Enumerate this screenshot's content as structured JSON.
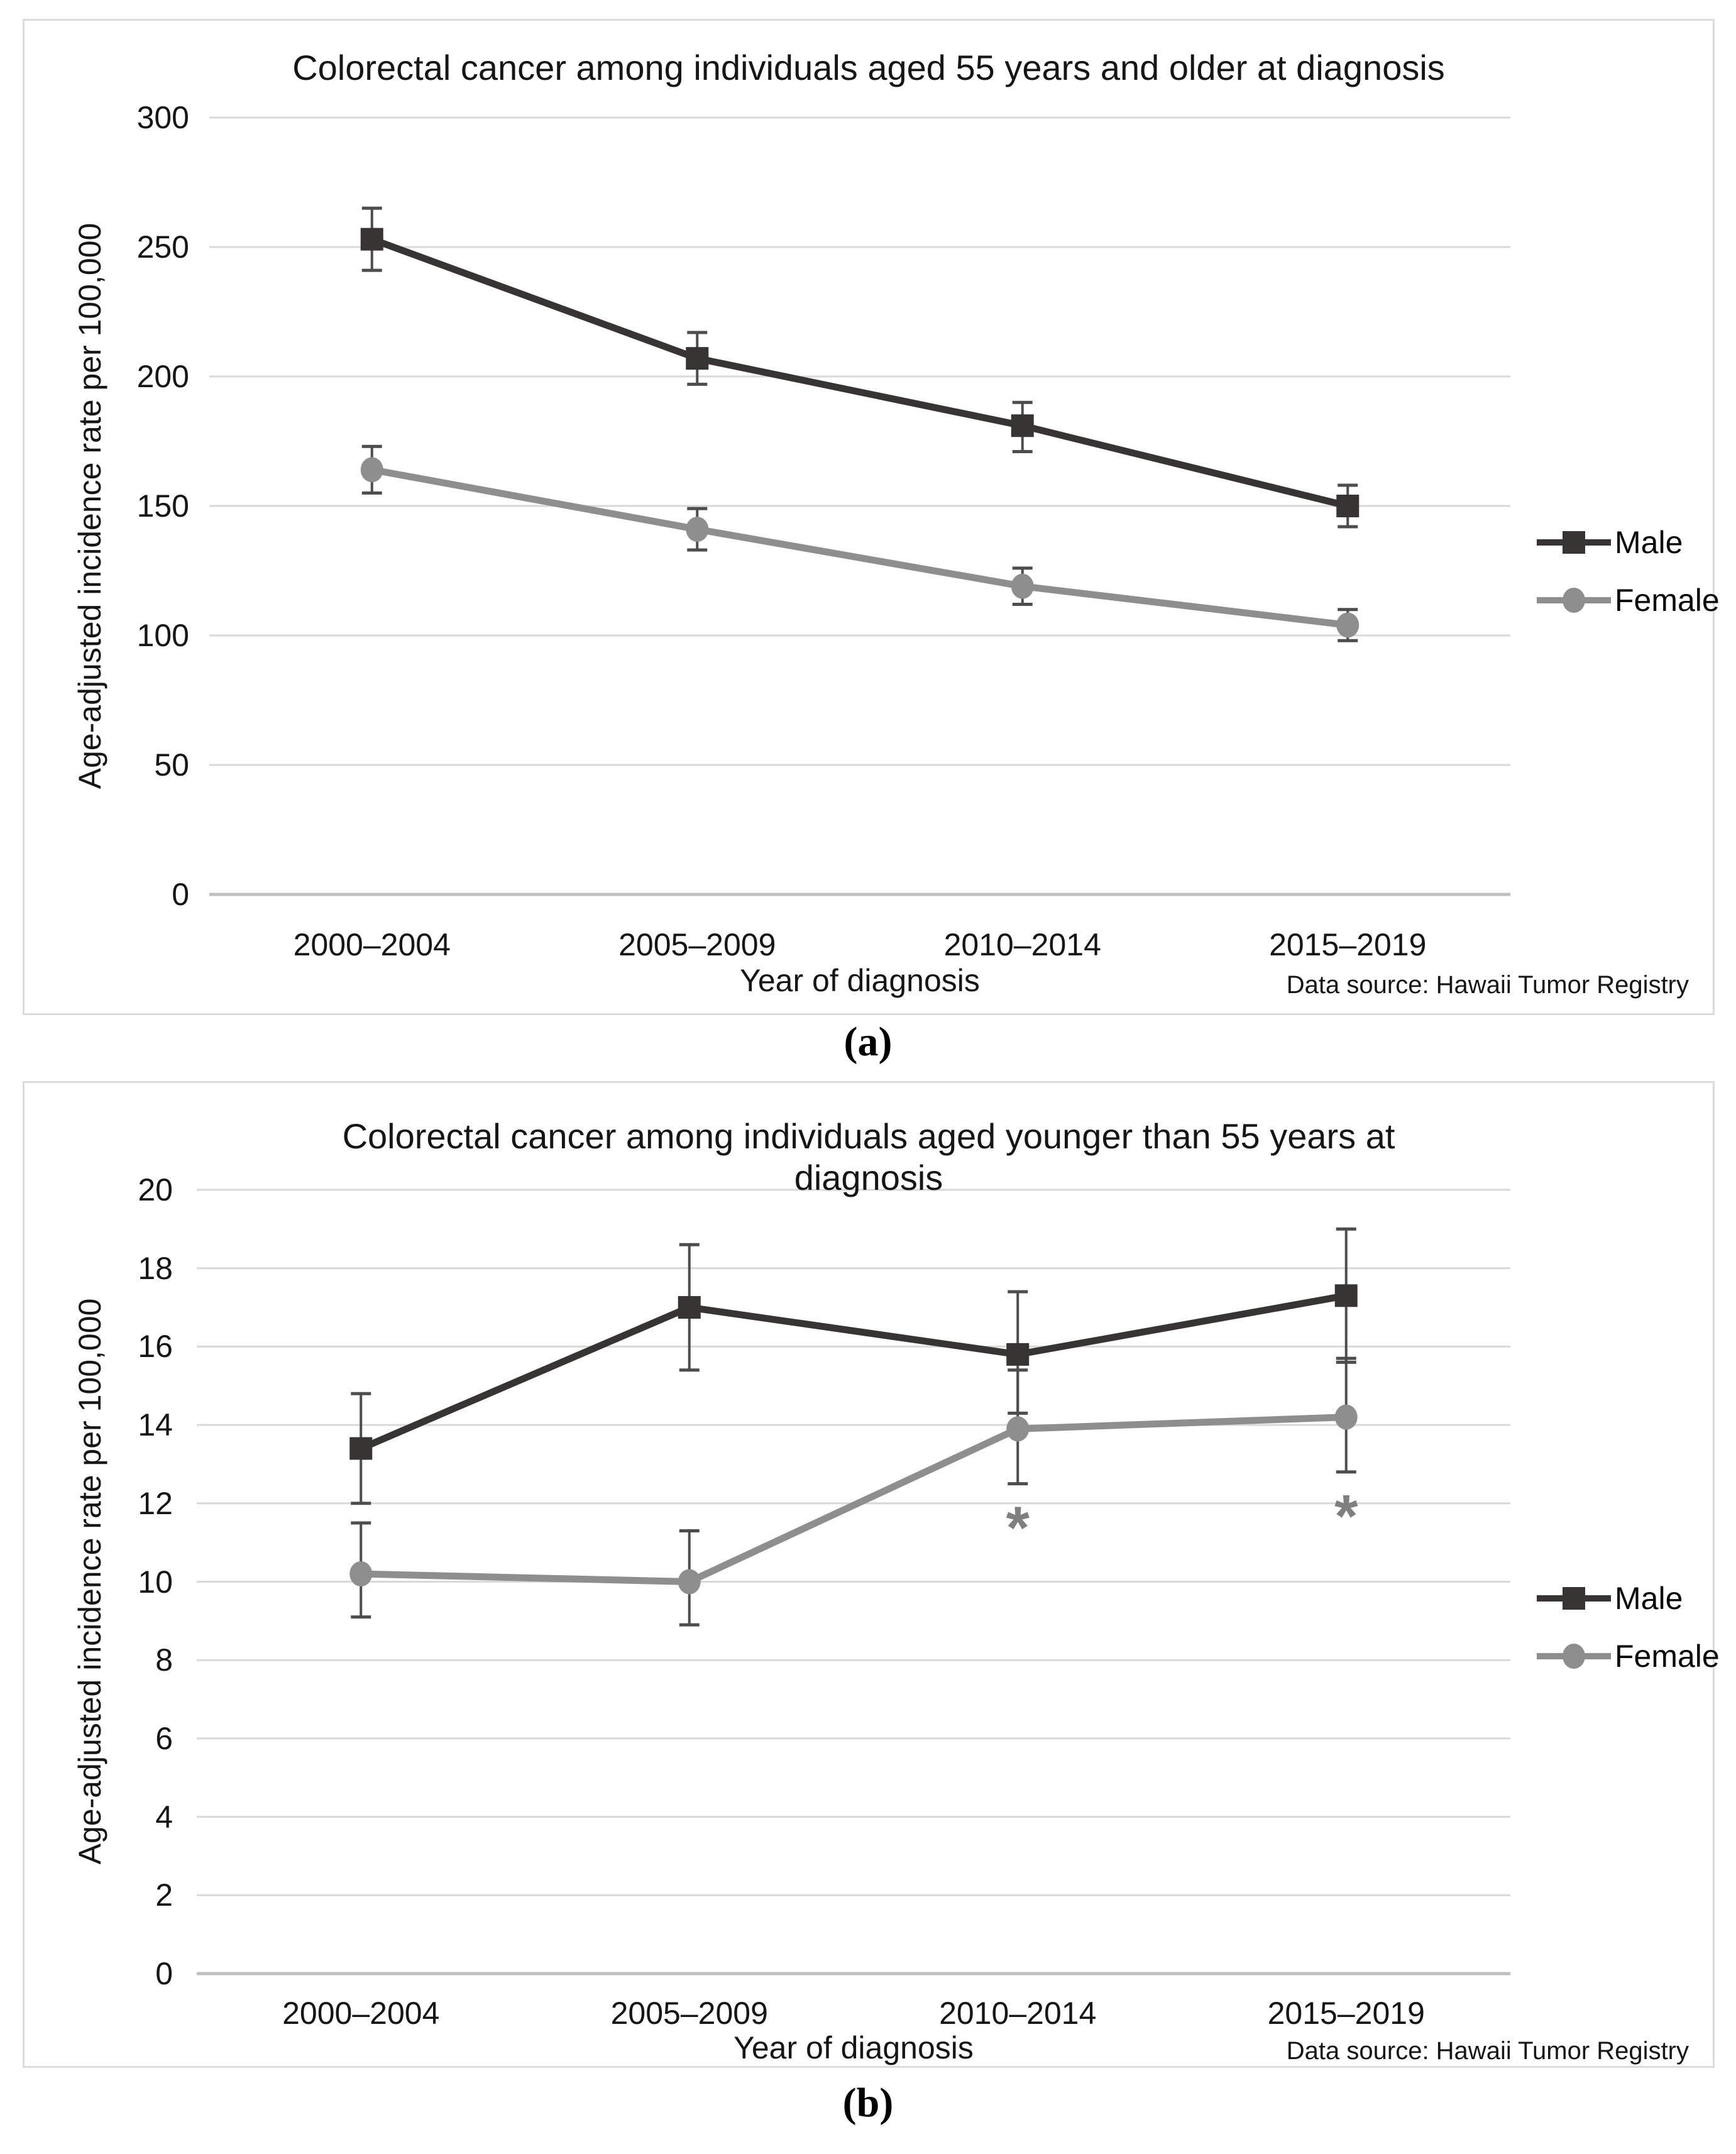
{
  "panel_labels": {
    "a": "(a)",
    "b": "(b)"
  },
  "colors": {
    "male": "#393434",
    "female": "#8e8e8e",
    "error_bar": "#4d4d4d",
    "gridline": "#d9d9d9",
    "axis_line": "#bfbfbf",
    "annotation": "#7f7f7f",
    "panel_border": "#dcdcdc"
  },
  "chart_data": [
    {
      "type": "line",
      "panel": "a",
      "title_lines": [
        "Colorectal cancer among individuals aged 55 years and older at diagnosis"
      ],
      "ylabel": "Age-adjusted incidence rate per 100,000",
      "xlabel": "Year of diagnosis",
      "source_note": "Data source: Hawaii Tumor Registry",
      "categories": [
        "2000–2004",
        "2005–2009",
        "2010–2014",
        "2015–2019"
      ],
      "ylim": [
        0,
        300
      ],
      "yticks": [
        0,
        50,
        100,
        150,
        200,
        250,
        300
      ],
      "grid": true,
      "legend_position": "right",
      "series": [
        {
          "name": "Male",
          "marker": "square",
          "color_key": "male",
          "values": [
            253,
            207,
            181,
            150
          ],
          "error_low": [
            241,
            197,
            171,
            142
          ],
          "error_high": [
            265,
            217,
            190,
            158
          ]
        },
        {
          "name": "Female",
          "marker": "circle",
          "color_key": "female",
          "values": [
            164,
            141,
            119,
            104
          ],
          "error_low": [
            155,
            133,
            112,
            98
          ],
          "error_high": [
            173,
            149,
            126,
            110
          ]
        }
      ],
      "annotations": []
    },
    {
      "type": "line",
      "panel": "b",
      "title_lines": [
        "Colorectal cancer among individuals aged younger than 55 years at",
        "diagnosis"
      ],
      "ylabel": "Age-adjusted incidence rate per 100,000",
      "xlabel": "Year of diagnosis",
      "source_note": "Data source: Hawaii Tumor Registry",
      "categories": [
        "2000–2004",
        "2005–2009",
        "2010–2014",
        "2015–2019"
      ],
      "ylim": [
        0,
        20
      ],
      "yticks": [
        0,
        2,
        4,
        6,
        8,
        10,
        12,
        14,
        16,
        18,
        20
      ],
      "grid": true,
      "legend_position": "right",
      "series": [
        {
          "name": "Male",
          "marker": "square",
          "color_key": "male",
          "values": [
            13.4,
            17.0,
            15.8,
            17.3
          ],
          "error_low": [
            12.0,
            15.4,
            14.3,
            15.6
          ],
          "error_high": [
            14.8,
            18.6,
            17.4,
            19.0
          ]
        },
        {
          "name": "Female",
          "marker": "circle",
          "color_key": "female",
          "values": [
            10.2,
            10.0,
            13.9,
            14.2
          ],
          "error_low": [
            9.1,
            8.9,
            12.5,
            12.8
          ],
          "error_high": [
            11.5,
            11.3,
            15.4,
            15.7
          ]
        }
      ],
      "annotations": [
        {
          "symbol": "*",
          "category_index": 2,
          "y_value": 11.6
        },
        {
          "symbol": "*",
          "category_index": 3,
          "y_value": 11.9
        }
      ]
    }
  ]
}
